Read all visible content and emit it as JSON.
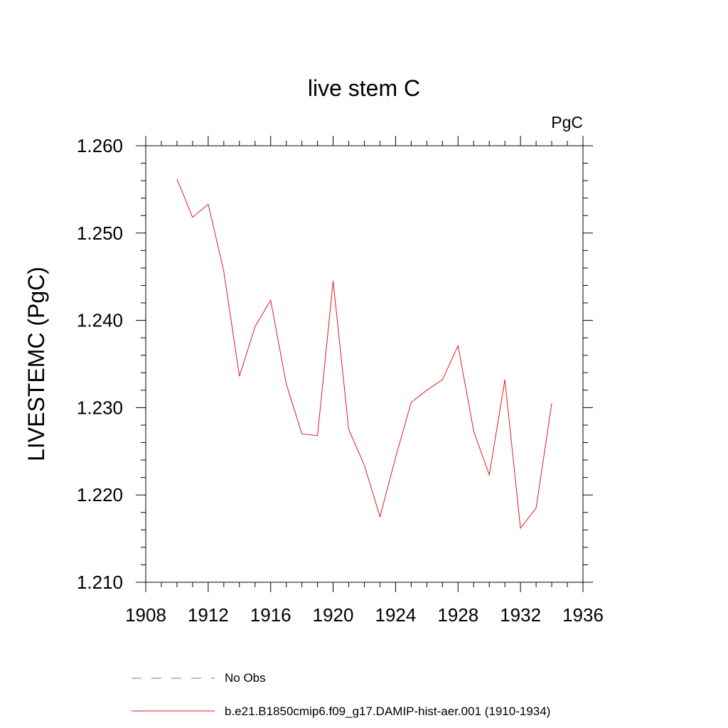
{
  "chart_data": {
    "type": "line",
    "title": "live stem C",
    "units_label": "PgC",
    "ylabel": "LIVESTEMC  (PgC)",
    "xlabel": "",
    "xlim": [
      1908,
      1936
    ],
    "ylim": [
      1.21,
      1.26
    ],
    "x_ticks": [
      1908,
      1912,
      1916,
      1920,
      1924,
      1928,
      1932,
      1936
    ],
    "y_ticks": [
      1.21,
      1.22,
      1.23,
      1.24,
      1.25,
      1.26
    ],
    "x_tick_labels": [
      "1908",
      "1912",
      "1916",
      "1920",
      "1924",
      "1928",
      "1932",
      "1936"
    ],
    "y_tick_labels": [
      "1.210",
      "1.220",
      "1.230",
      "1.240",
      "1.250",
      "1.260"
    ],
    "grid": false,
    "legend_placement": "bottom",
    "legend": [
      {
        "label": "No Obs",
        "color": "#7a6fc0",
        "dash": "dashed"
      },
      {
        "label": "b.e21.B1850cmip6.f09_g17.DAMIP-hist-aer.001 (1910-1934)",
        "color": "#e31a1c",
        "dash": "solid"
      }
    ],
    "series": [
      {
        "name": "b.e21.B1850cmip6.f09_g17.DAMIP-hist-aer.001 (1910-1934)",
        "color": "#e31a1c",
        "x": [
          1910,
          1911,
          1912,
          1913,
          1914,
          1915,
          1916,
          1917,
          1918,
          1919,
          1920,
          1921,
          1922,
          1923,
          1924,
          1925,
          1926,
          1927,
          1928,
          1929,
          1930,
          1931,
          1932,
          1933,
          1934
        ],
        "y": [
          1.2562,
          1.2518,
          1.2533,
          1.2456,
          1.2336,
          1.2393,
          1.2423,
          1.2327,
          1.227,
          1.2268,
          1.2445,
          1.2275,
          1.2234,
          1.2175,
          1.2243,
          1.2306,
          1.232,
          1.2332,
          1.2371,
          1.2273,
          1.2223,
          1.2332,
          1.2162,
          1.2185,
          1.2305
        ]
      }
    ]
  }
}
